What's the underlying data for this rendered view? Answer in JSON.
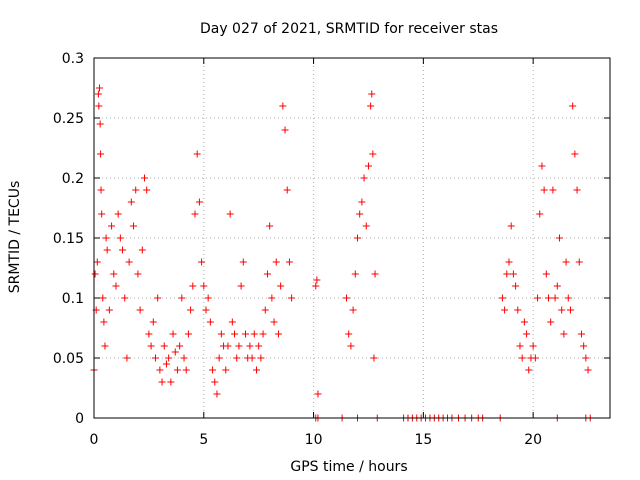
{
  "chart_data": {
    "type": "scatter",
    "title": "Day 027 of 2021, SRMTID for receiver stas",
    "xlabel": "GPS time / hours",
    "ylabel": "SRMTID / TECUs",
    "xlim": [
      0,
      23.5
    ],
    "ylim": [
      0,
      0.3
    ],
    "xticks": [
      0,
      5,
      10,
      15,
      20
    ],
    "xtick_labels": [
      "0",
      "5",
      "10",
      "15",
      "20"
    ],
    "yticks": [
      0,
      0.05,
      0.1,
      0.15,
      0.2,
      0.25,
      0.3
    ],
    "ytick_labels": [
      "0",
      "0.05",
      "0.1",
      "0.15",
      "0.2",
      "0.25",
      "0.3"
    ],
    "grid": true,
    "marker": "plus",
    "series": [
      {
        "name": "SRMTID",
        "color": "#ff0000",
        "points": [
          [
            0.0,
            0.04
          ],
          [
            0.05,
            0.12
          ],
          [
            0.1,
            0.09
          ],
          [
            0.15,
            0.13
          ],
          [
            0.2,
            0.27
          ],
          [
            0.22,
            0.26
          ],
          [
            0.25,
            0.275
          ],
          [
            0.28,
            0.245
          ],
          [
            0.3,
            0.22
          ],
          [
            0.32,
            0.19
          ],
          [
            0.35,
            0.17
          ],
          [
            0.4,
            0.1
          ],
          [
            0.45,
            0.08
          ],
          [
            0.5,
            0.06
          ],
          [
            0.55,
            0.15
          ],
          [
            0.6,
            0.14
          ],
          [
            0.7,
            0.09
          ],
          [
            0.8,
            0.16
          ],
          [
            0.9,
            0.12
          ],
          [
            1.0,
            0.11
          ],
          [
            1.1,
            0.17
          ],
          [
            1.2,
            0.15
          ],
          [
            1.3,
            0.14
          ],
          [
            1.4,
            0.1
          ],
          [
            1.5,
            0.05
          ],
          [
            1.6,
            0.13
          ],
          [
            1.7,
            0.18
          ],
          [
            1.8,
            0.16
          ],
          [
            1.9,
            0.19
          ],
          [
            2.0,
            0.12
          ],
          [
            2.1,
            0.09
          ],
          [
            2.2,
            0.14
          ],
          [
            2.3,
            0.2
          ],
          [
            2.4,
            0.19
          ],
          [
            2.5,
            0.07
          ],
          [
            2.6,
            0.06
          ],
          [
            2.7,
            0.08
          ],
          [
            2.8,
            0.05
          ],
          [
            2.9,
            0.1
          ],
          [
            3.0,
            0.04
          ],
          [
            3.1,
            0.03
          ],
          [
            3.2,
            0.06
          ],
          [
            3.3,
            0.045
          ],
          [
            3.4,
            0.05
          ],
          [
            3.5,
            0.03
          ],
          [
            3.6,
            0.07
          ],
          [
            3.7,
            0.055
          ],
          [
            3.8,
            0.04
          ],
          [
            3.9,
            0.06
          ],
          [
            4.0,
            0.1
          ],
          [
            4.1,
            0.05
          ],
          [
            4.2,
            0.04
          ],
          [
            4.3,
            0.07
          ],
          [
            4.4,
            0.09
          ],
          [
            4.5,
            0.11
          ],
          [
            4.6,
            0.17
          ],
          [
            4.7,
            0.22
          ],
          [
            4.8,
            0.18
          ],
          [
            4.9,
            0.13
          ],
          [
            5.0,
            0.11
          ],
          [
            5.1,
            0.09
          ],
          [
            5.2,
            0.1
          ],
          [
            5.3,
            0.08
          ],
          [
            5.4,
            0.04
          ],
          [
            5.5,
            0.03
          ],
          [
            5.6,
            0.02
          ],
          [
            5.7,
            0.05
          ],
          [
            5.8,
            0.07
          ],
          [
            5.9,
            0.06
          ],
          [
            6.0,
            0.04
          ],
          [
            6.1,
            0.06
          ],
          [
            6.2,
            0.17
          ],
          [
            6.3,
            0.08
          ],
          [
            6.4,
            0.07
          ],
          [
            6.5,
            0.05
          ],
          [
            6.6,
            0.06
          ],
          [
            6.7,
            0.11
          ],
          [
            6.8,
            0.13
          ],
          [
            6.9,
            0.07
          ],
          [
            7.0,
            0.05
          ],
          [
            7.1,
            0.06
          ],
          [
            7.2,
            0.05
          ],
          [
            7.3,
            0.07
          ],
          [
            7.4,
            0.04
          ],
          [
            7.5,
            0.06
          ],
          [
            7.6,
            0.05
          ],
          [
            7.7,
            0.07
          ],
          [
            7.8,
            0.09
          ],
          [
            7.9,
            0.12
          ],
          [
            8.0,
            0.16
          ],
          [
            8.1,
            0.1
          ],
          [
            8.2,
            0.08
          ],
          [
            8.3,
            0.13
          ],
          [
            8.4,
            0.07
          ],
          [
            8.5,
            0.11
          ],
          [
            8.6,
            0.26
          ],
          [
            8.7,
            0.24
          ],
          [
            8.8,
            0.19
          ],
          [
            8.9,
            0.13
          ],
          [
            9.0,
            0.1
          ],
          [
            10.1,
            0.11
          ],
          [
            10.15,
            0.115
          ],
          [
            10.2,
            0.02
          ],
          [
            11.5,
            0.1
          ],
          [
            11.6,
            0.07
          ],
          [
            11.7,
            0.06
          ],
          [
            11.8,
            0.09
          ],
          [
            11.9,
            0.12
          ],
          [
            12.0,
            0.15
          ],
          [
            12.1,
            0.17
          ],
          [
            12.2,
            0.18
          ],
          [
            12.3,
            0.2
          ],
          [
            12.4,
            0.16
          ],
          [
            12.5,
            0.21
          ],
          [
            12.6,
            0.26
          ],
          [
            12.65,
            0.27
          ],
          [
            12.7,
            0.22
          ],
          [
            12.75,
            0.05
          ],
          [
            12.8,
            0.12
          ],
          [
            18.6,
            0.1
          ],
          [
            18.7,
            0.09
          ],
          [
            18.8,
            0.12
          ],
          [
            18.9,
            0.13
          ],
          [
            19.0,
            0.16
          ],
          [
            19.1,
            0.12
          ],
          [
            19.2,
            0.11
          ],
          [
            19.3,
            0.09
          ],
          [
            19.4,
            0.06
          ],
          [
            19.5,
            0.05
          ],
          [
            19.6,
            0.08
          ],
          [
            19.7,
            0.07
          ],
          [
            19.8,
            0.04
          ],
          [
            19.9,
            0.05
          ],
          [
            20.0,
            0.06
          ],
          [
            20.1,
            0.05
          ],
          [
            20.2,
            0.1
          ],
          [
            20.3,
            0.17
          ],
          [
            20.4,
            0.21
          ],
          [
            20.5,
            0.19
          ],
          [
            20.6,
            0.12
          ],
          [
            20.7,
            0.1
          ],
          [
            20.8,
            0.08
          ],
          [
            20.9,
            0.19
          ],
          [
            21.0,
            0.1
          ],
          [
            21.1,
            0.11
          ],
          [
            21.2,
            0.15
          ],
          [
            21.3,
            0.09
          ],
          [
            21.4,
            0.07
          ],
          [
            21.5,
            0.13
          ],
          [
            21.6,
            0.1
          ],
          [
            21.7,
            0.09
          ],
          [
            21.8,
            0.26
          ],
          [
            21.9,
            0.22
          ],
          [
            22.0,
            0.19
          ],
          [
            22.1,
            0.13
          ],
          [
            22.2,
            0.07
          ],
          [
            22.3,
            0.06
          ],
          [
            22.4,
            0.05
          ],
          [
            22.5,
            0.04
          ],
          [
            10.1,
            0.0
          ],
          [
            10.2,
            0.0
          ],
          [
            11.3,
            0.0
          ],
          [
            12.0,
            0.0
          ],
          [
            12.9,
            0.0
          ],
          [
            14.1,
            0.0
          ],
          [
            14.3,
            0.0
          ],
          [
            14.5,
            0.0
          ],
          [
            14.7,
            0.0
          ],
          [
            14.9,
            0.0
          ],
          [
            15.1,
            0.0
          ],
          [
            15.3,
            0.0
          ],
          [
            15.5,
            0.0
          ],
          [
            15.7,
            0.0
          ],
          [
            15.9,
            0.0
          ],
          [
            16.1,
            0.0
          ],
          [
            16.3,
            0.0
          ],
          [
            16.6,
            0.0
          ],
          [
            16.9,
            0.0
          ],
          [
            17.2,
            0.0
          ],
          [
            17.5,
            0.0
          ],
          [
            17.7,
            0.0
          ],
          [
            18.5,
            0.0
          ],
          [
            21.1,
            0.0
          ],
          [
            22.4,
            0.0
          ],
          [
            22.6,
            0.0
          ]
        ]
      }
    ]
  }
}
